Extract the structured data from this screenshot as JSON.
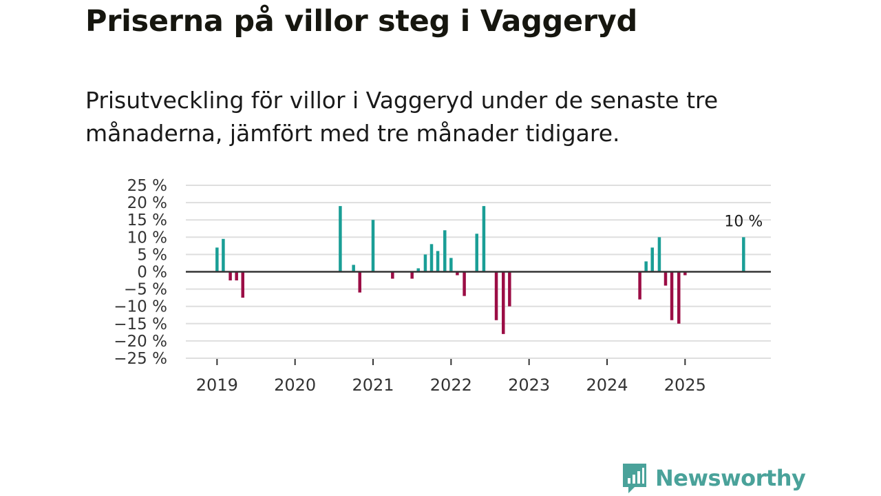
{
  "header": {
    "title": "Priserna på villor steg i Vaggeryd",
    "subtitle": "Prisutveckling för villor i Vaggeryd under de senaste tre månaderna, jämfört med tre månader tidigare."
  },
  "chart_data": {
    "type": "bar",
    "title": "Priserna på villor steg i Vaggeryd",
    "subtitle": "Prisutveckling för villor i Vaggeryd under de senaste tre månaderna, jämfört med tre månader tidigare.",
    "xlabel": "",
    "ylabel": "",
    "ylim": [
      -25,
      25
    ],
    "xlim": [
      2018.6,
      2026.1
    ],
    "yticks": [
      25,
      20,
      15,
      10,
      5,
      0,
      -5,
      -10,
      -15,
      -20,
      -25
    ],
    "ytick_labels": [
      "25 %",
      "20 %",
      "15 %",
      "10 %",
      "5 %",
      "0 %",
      "−5 %",
      "−10 %",
      "−15 %",
      "−20 %",
      "−25 %"
    ],
    "xticks": [
      2019,
      2020,
      2021,
      2022,
      2023,
      2024,
      2025
    ],
    "xtick_labels": [
      "2019",
      "2020",
      "2021",
      "2022",
      "2023",
      "2024",
      "2025"
    ],
    "grid": true,
    "positive_color": "#1a9e96",
    "negative_color": "#9b0d45",
    "annotation": {
      "text": "10 %",
      "x": 2025.75,
      "y": 10
    },
    "x": [
      2019.0,
      2019.08,
      2019.17,
      2019.25,
      2019.33,
      2020.58,
      2020.75,
      2020.83,
      2021.0,
      2021.25,
      2021.5,
      2021.58,
      2021.67,
      2021.75,
      2021.83,
      2021.92,
      2022.0,
      2022.08,
      2022.17,
      2022.33,
      2022.42,
      2022.58,
      2022.67,
      2022.75,
      2024.42,
      2024.5,
      2024.58,
      2024.67,
      2024.75,
      2024.83,
      2024.92,
      2025.0,
      2025.75
    ],
    "values": [
      7,
      9.5,
      -2.5,
      -2.5,
      -7.5,
      19,
      2,
      -6,
      15,
      -2,
      -2,
      1,
      5,
      8,
      6,
      12,
      4,
      -1,
      -7,
      11,
      19,
      -14,
      -18,
      -10,
      -8,
      3,
      7,
      10,
      -4,
      -14,
      -15,
      -1,
      10
    ]
  },
  "branding": {
    "logo_text": "Newsworthy",
    "logo_icon": "newsworthy-chat-bars-icon",
    "logo_color": "#4aa29a"
  }
}
